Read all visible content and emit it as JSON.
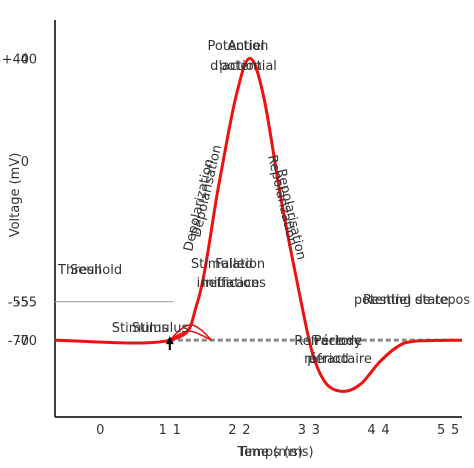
{
  "chart_data": {
    "type": "line",
    "xlabel": "Time (ms)",
    "xlabel_overlay": "Temps (ms)",
    "ylabel": "Voltage (mV)",
    "x_ticks": [
      {
        "value": 0,
        "labels": [
          "0"
        ]
      },
      {
        "value": 1,
        "labels": [
          "1",
          "1"
        ]
      },
      {
        "value": 2,
        "labels": [
          "2",
          "2"
        ]
      },
      {
        "value": 3,
        "labels": [
          "3",
          "3"
        ]
      },
      {
        "value": 4,
        "labels": [
          "4",
          "4"
        ]
      },
      {
        "value": 5,
        "labels": [
          "5",
          "5"
        ]
      }
    ],
    "y_ticks": [
      {
        "value": 40,
        "label": "+40",
        "label_overlay": "40"
      },
      {
        "value": 0,
        "label": "0"
      },
      {
        "value": -55,
        "label": "-55",
        "label_overlay": "-55"
      },
      {
        "value": -70,
        "label": "-70",
        "label_overlay": "-70"
      }
    ],
    "xlim": [
      -0.65,
      5.2
    ],
    "ylim": [
      -100,
      55
    ],
    "resting_potential": -70,
    "threshold": -55,
    "series": [
      {
        "color": "#ee1111",
        "points": [
          [
            -0.65,
            -70
          ],
          [
            1.0,
            -70
          ],
          [
            1.4,
            -55
          ],
          [
            1.7,
            -10
          ],
          [
            1.95,
            25
          ],
          [
            2.15,
            40
          ],
          [
            2.35,
            25
          ],
          [
            2.6,
            -15
          ],
          [
            2.85,
            -50
          ],
          [
            3.05,
            -75
          ],
          [
            3.25,
            -87
          ],
          [
            3.5,
            -90
          ],
          [
            3.75,
            -87
          ],
          [
            4.0,
            -79
          ],
          [
            4.25,
            -73
          ],
          [
            4.5,
            -70.5
          ],
          [
            5.2,
            -70
          ]
        ]
      }
    ],
    "failed_initiations": [
      {
        "color": "#ee1111",
        "points": [
          [
            1.0,
            -70
          ],
          [
            1.15,
            -66
          ],
          [
            1.3,
            -64
          ],
          [
            1.45,
            -66
          ],
          [
            1.6,
            -70
          ]
        ]
      },
      {
        "color": "#ee1111",
        "points": [
          [
            1.0,
            -70
          ],
          [
            1.15,
            -67.5
          ],
          [
            1.3,
            -66.5
          ],
          [
            1.45,
            -68
          ],
          [
            1.6,
            -70
          ]
        ]
      }
    ],
    "stimulus_x": 1.0,
    "annotations": {
      "action_potential": [
        "Action",
        "potential"
      ],
      "action_potential_overlay": [
        "Potentiel",
        "d'action"
      ],
      "depolarization": "Depolarization",
      "depolarization_overlay": "Dépolarisation",
      "repolarization": "Repolarization",
      "repolarization_overlay": "Repolarisation",
      "threshold": "Threshold",
      "threshold_overlay": "Seuil",
      "failed_initiations": [
        "Failed",
        "initiations"
      ],
      "failed_initiations_overlay": [
        "Stimulation",
        "inefficace"
      ],
      "stimulus": "Stimulus",
      "stimulus_overlay": "Stimulus",
      "resting_state": "Resting state",
      "resting_state_overlay": "potentiel de repos",
      "refractory_period": [
        "Refractory",
        "period"
      ],
      "refractory_period_overlay": [
        "Période",
        "réfractaire"
      ]
    },
    "grid": false,
    "legend": "none"
  }
}
